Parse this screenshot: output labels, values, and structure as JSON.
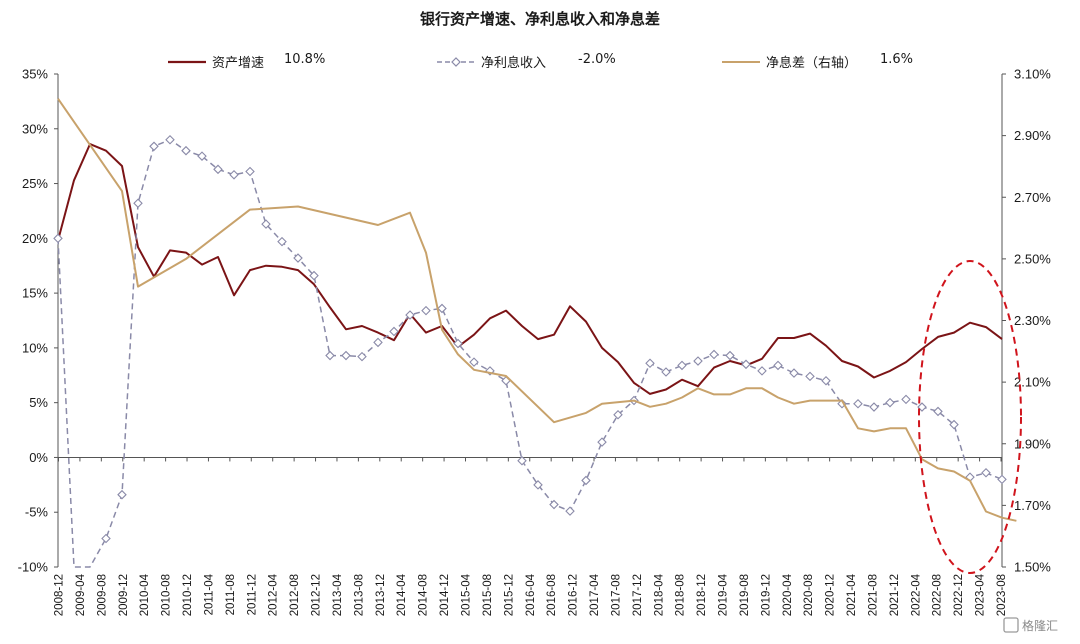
{
  "title": "银行资产增速、净利息收入和净息差",
  "watermark": "格隆汇",
  "chart_data": {
    "type": "line",
    "title": "银行资产增速、净利息收入和净息差",
    "legend_placement": "top",
    "grid": false,
    "y_left": {
      "min": -10,
      "max": 35,
      "step": 5,
      "ticks": [
        "-10%",
        "-5%",
        "0%",
        "5%",
        "10%",
        "15%",
        "20%",
        "25%",
        "30%",
        "35%"
      ]
    },
    "y_right": {
      "min": 1.5,
      "max": 3.1,
      "step": 0.2,
      "ticks": [
        "1.50%",
        "1.70%",
        "1.90%",
        "2.10%",
        "2.30%",
        "2.50%",
        "2.70%",
        "2.90%",
        "3.10%"
      ]
    },
    "x_labels": [
      "2008-12",
      "2009-04",
      "2009-08",
      "2009-12",
      "2010-04",
      "2010-08",
      "2010-12",
      "2011-04",
      "2011-08",
      "2011-12",
      "2012-04",
      "2012-08",
      "2012-12",
      "2013-04",
      "2013-08",
      "2013-12",
      "2014-04",
      "2014-08",
      "2014-12",
      "2015-04",
      "2015-08",
      "2015-12",
      "2016-04",
      "2016-08",
      "2016-12",
      "2017-04",
      "2017-08",
      "2017-12",
      "2018-04",
      "2018-08",
      "2018-12",
      "2019-04",
      "2019-08",
      "2019-12",
      "2020-04",
      "2020-08",
      "2020-12",
      "2021-04",
      "2021-08",
      "2021-12",
      "2022-04",
      "2022-08",
      "2022-12",
      "2023-04",
      "2023-08"
    ],
    "series": [
      {
        "name": "资产增速",
        "legend_value": "10.8%",
        "axis": "left",
        "color": "#7b1416",
        "style": "solid",
        "values": [
          19.8,
          25.3,
          28.6,
          28.0,
          26.6,
          19.2,
          16.5,
          18.9,
          18.7,
          17.6,
          18.3,
          14.8,
          17.1,
          17.5,
          17.4,
          17.1,
          15.8,
          13.7,
          11.7,
          12.0,
          11.4,
          10.7,
          13.1,
          11.4,
          12.0,
          10.1,
          11.2,
          12.7,
          13.4,
          12.0,
          10.8,
          11.2,
          13.8,
          12.4,
          10.0,
          8.7,
          6.8,
          5.8,
          6.2,
          7.1,
          6.5,
          8.2,
          8.8,
          8.4,
          9.0,
          10.9,
          10.9,
          11.3,
          10.2,
          8.8,
          8.3,
          7.3,
          7.9,
          8.7,
          9.9,
          11.0,
          11.4,
          12.3,
          11.9,
          10.8
        ]
      },
      {
        "name": "净利息收入",
        "legend_value": "-2.0%",
        "axis": "left",
        "color": "#8a8aa8",
        "style": "dashed-diamond",
        "values": [
          20.0,
          -10.0,
          -10.0,
          -7.4,
          -3.4,
          23.2,
          28.4,
          29.0,
          28.0,
          27.5,
          26.3,
          25.8,
          26.1,
          21.3,
          19.7,
          18.2,
          16.6,
          9.3,
          9.3,
          9.2,
          10.5,
          11.5,
          13.0,
          13.4,
          13.6,
          10.4,
          8.7,
          7.9,
          7.0,
          -0.3,
          -2.5,
          -4.3,
          -4.9,
          -2.1,
          1.4,
          3.9,
          5.2,
          8.6,
          7.8,
          8.4,
          8.8,
          9.4,
          9.3,
          8.5,
          7.9,
          8.4,
          7.7,
          7.4,
          7.0,
          4.9,
          4.9,
          4.6,
          5.0,
          5.3,
          4.6,
          4.2,
          3.0,
          -1.8,
          -1.4,
          -2.0
        ]
      },
      {
        "name": "净息差（右轴）",
        "legend_value": "1.6%",
        "axis": "right",
        "color": "#c8a26b",
        "style": "solid",
        "values": [
          3.02,
          2.72,
          2.41,
          2.5,
          2.66,
          2.67,
          2.61,
          2.65,
          2.52,
          2.27,
          2.19,
          2.14,
          2.12,
          1.97,
          2.0,
          2.03,
          2.04,
          2.02,
          2.03,
          2.05,
          2.08,
          2.06,
          2.06,
          2.08,
          2.08,
          2.05,
          2.03,
          2.04,
          2.04,
          2.04,
          1.95,
          1.94,
          1.95,
          1.95,
          1.85,
          1.82,
          1.81,
          1.78,
          1.68,
          1.66,
          1.65
        ]
      }
    ],
    "x_index": {
      "资产增速": [
        0,
        1,
        2,
        3,
        4,
        5,
        6,
        7,
        8,
        9,
        10,
        11,
        12,
        13,
        14,
        15,
        16,
        17,
        18,
        19,
        20,
        21,
        22,
        23,
        24,
        25,
        26,
        27,
        28,
        29,
        30,
        31,
        32,
        33,
        34,
        35,
        36,
        37,
        38,
        39,
        40,
        41,
        42,
        43,
        44,
        45,
        46,
        47,
        48,
        49,
        50,
        51,
        52,
        53,
        54,
        55,
        56,
        57,
        58,
        59
      ],
      "净利息收入": [
        0,
        1,
        2,
        3,
        4,
        5,
        6,
        7,
        8,
        9,
        10,
        11,
        12,
        13,
        14,
        15,
        16,
        17,
        18,
        19,
        20,
        21,
        22,
        23,
        24,
        25,
        26,
        27,
        28,
        29,
        30,
        31,
        32,
        33,
        34,
        35,
        36,
        37,
        38,
        39,
        40,
        41,
        42,
        43,
        44,
        45,
        46,
        47,
        48,
        49,
        50,
        51,
        52,
        53,
        54,
        55,
        56,
        57,
        58,
        59
      ],
      "净息差（右轴）": [
        0,
        4,
        5,
        8,
        12,
        15,
        20,
        22,
        23,
        24,
        25,
        26,
        28,
        31,
        33,
        34,
        36,
        37,
        38,
        39,
        40,
        41,
        42,
        43,
        44,
        45,
        46,
        47,
        48,
        49,
        50,
        51,
        52,
        53,
        54,
        55,
        56,
        57,
        58,
        59,
        59.9
      ]
    },
    "x_positions_total": 60,
    "annotations": [
      "dashed-red-ellipse-around-2022-2023"
    ]
  }
}
